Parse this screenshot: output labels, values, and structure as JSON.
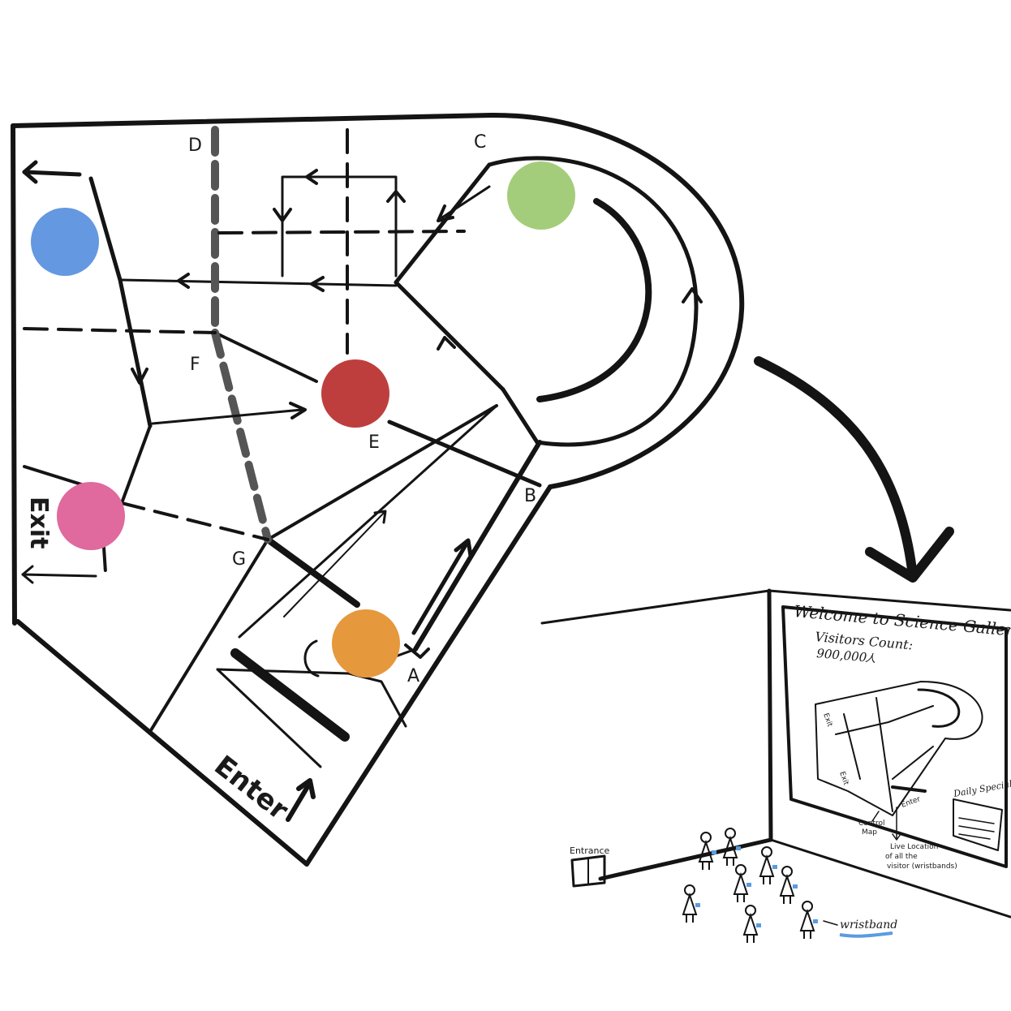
{
  "floor_plan": {
    "zone_labels": [
      "A",
      "B",
      "C",
      "D",
      "E",
      "F",
      "G"
    ],
    "enter_label": "Enter",
    "exit_label": "Exit",
    "markers": [
      {
        "name": "blue-marker",
        "color": "#6498E0"
      },
      {
        "name": "green-marker",
        "color": "#A4CD7B"
      },
      {
        "name": "red-marker",
        "color": "#BE3E3E"
      },
      {
        "name": "pink-marker",
        "color": "#E0699D"
      },
      {
        "name": "orange-marker",
        "color": "#E6983D"
      }
    ]
  },
  "display_scene": {
    "screen_title": "Welcome to Science Gallery",
    "visitors_label": "Visitors Count:",
    "visitors_value": "900,000",
    "visitors_unit": "人",
    "daily_special": "Daily Special",
    "mini_enter": "Enter",
    "mini_exit": "Exit",
    "mini_exit_2": "Exit",
    "control_map": [
      "Control",
      "Map"
    ],
    "live_location": [
      "Live Location",
      "of all the",
      "visitor (wristbands)"
    ],
    "entrance_label": "Entrance",
    "wristband_label": "wristband",
    "wristband_color": "#5B9BE0"
  }
}
